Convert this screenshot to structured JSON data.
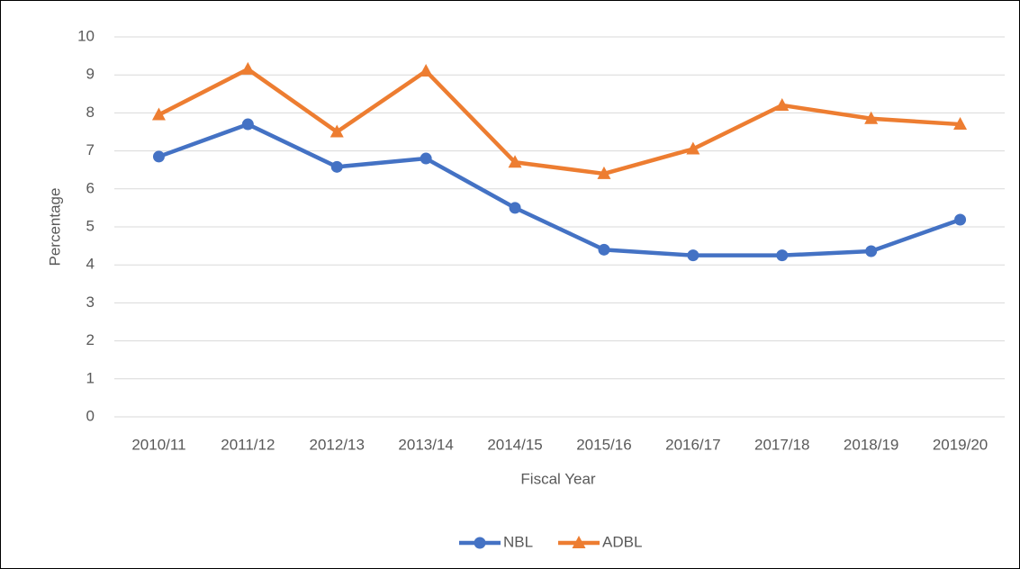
{
  "chart_data": {
    "type": "line",
    "xlabel": "Fiscal Year",
    "ylabel": "Percentage",
    "categories": [
      "2010/11",
      "2011/12",
      "2012/13",
      "2013/14",
      "2014/15",
      "2015/16",
      "2016/17",
      "2017/18",
      "2018/19",
      "2019/20"
    ],
    "series": [
      {
        "name": "NBL",
        "color": "#4472c4",
        "marker": "circle",
        "values": [
          6.85,
          7.7,
          6.58,
          6.8,
          5.5,
          4.4,
          4.25,
          4.25,
          4.36,
          5.19
        ]
      },
      {
        "name": "ADBL",
        "color": "#ed7d31",
        "marker": "triangle",
        "values": [
          7.95,
          9.15,
          7.5,
          9.1,
          6.7,
          6.4,
          7.05,
          8.2,
          7.85,
          7.7
        ]
      }
    ],
    "ylim": [
      0,
      10
    ],
    "yticks": [
      0,
      1,
      2,
      3,
      4,
      5,
      6,
      7,
      8,
      9,
      10
    ],
    "grid": true,
    "legend": "bottom"
  }
}
